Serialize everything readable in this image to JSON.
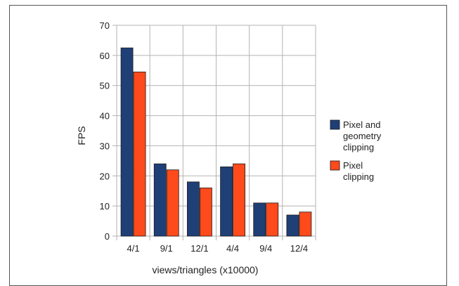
{
  "chart_data": {
    "type": "bar",
    "title": "",
    "xlabel": "views/triangles (x10000)",
    "ylabel": "FPS",
    "categories": [
      "4/1",
      "9/1",
      "12/1",
      "4/4",
      "9/4",
      "12/4"
    ],
    "ylim": [
      0,
      70
    ],
    "yticks": [
      0,
      10,
      20,
      30,
      40,
      50,
      60,
      70
    ],
    "grid": true,
    "legend_position": "right",
    "series": [
      {
        "name_lines": [
          "Pixel and",
          "geometry",
          "clipping"
        ],
        "color": "#1f3f77",
        "values": [
          62.5,
          24,
          18,
          23,
          11,
          7
        ]
      },
      {
        "name_lines": [
          "Pixel",
          "clipping"
        ],
        "color": "#ff4a1c",
        "values": [
          54.5,
          22,
          16,
          24,
          11,
          8
        ]
      }
    ]
  }
}
